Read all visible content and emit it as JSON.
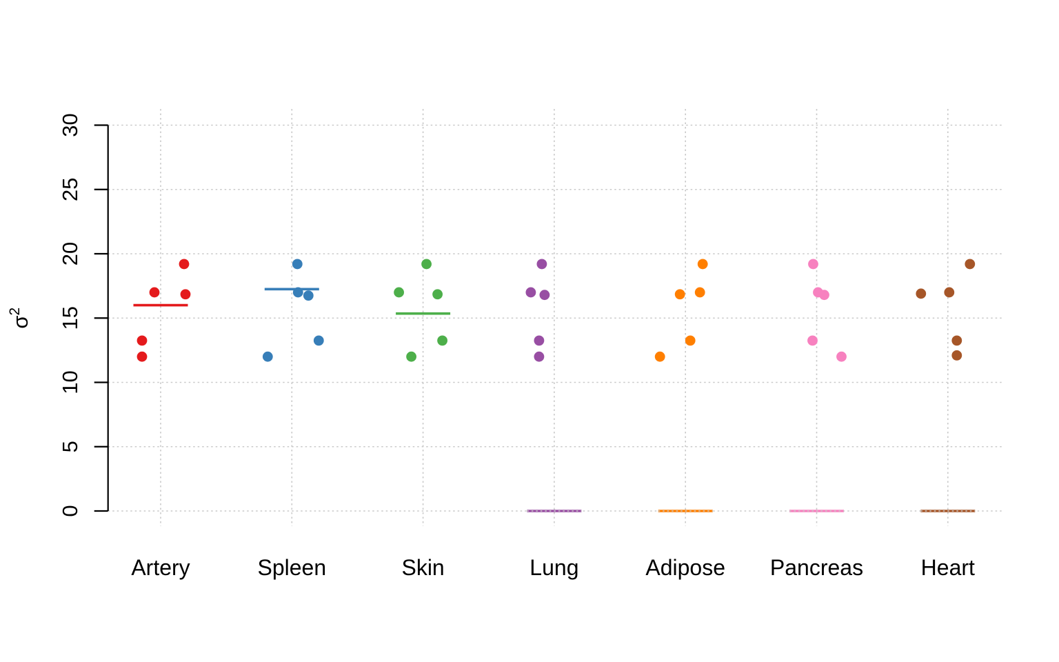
{
  "chart_data": {
    "type": "scatter",
    "subtype": "stripchart-jittered-dotplot",
    "title": "",
    "xlabel": "",
    "ylabel_base": "σ",
    "ylabel_superscript": "2",
    "ylim": [
      0,
      30
    ],
    "ytick_values": [
      0,
      5,
      10,
      15,
      20,
      25,
      30
    ],
    "ytick_labels": [
      "0",
      "5",
      "10",
      "15",
      "20",
      "25",
      "30"
    ],
    "ytick_label_rotation_deg": -90,
    "grid": true,
    "grid_style": "dotted",
    "gridline_color": "#c9c9c9",
    "axis_color": "#000000",
    "text_color": "#000000",
    "background_color": "#ffffff",
    "legend_position": "none",
    "categories": [
      "Artery",
      "Spleen",
      "Skin",
      "Lung",
      "Adipose",
      "Pancreas",
      "Heart"
    ],
    "series": [
      {
        "name": "Artery",
        "color": "#E41A1C",
        "points": [
          {
            "v": 19.2,
            "dx": 34
          },
          {
            "v": 17.0,
            "dx": -9
          },
          {
            "v": 16.85,
            "dx": 36
          },
          {
            "v": 13.25,
            "dx": -27
          },
          {
            "v": 12.0,
            "dx": -27
          }
        ],
        "center_line_value": 16.0
      },
      {
        "name": "Spleen",
        "color": "#377EB8",
        "points": [
          {
            "v": 19.2,
            "dx": 8
          },
          {
            "v": 17.0,
            "dx": 9
          },
          {
            "v": 16.75,
            "dx": 24
          },
          {
            "v": 13.25,
            "dx": 39
          },
          {
            "v": 12.0,
            "dx": -35
          }
        ],
        "center_line_value": 17.25
      },
      {
        "name": "Skin",
        "color": "#4DAF4A",
        "points": [
          {
            "v": 19.2,
            "dx": 5
          },
          {
            "v": 17.0,
            "dx": -35
          },
          {
            "v": 16.85,
            "dx": 21
          },
          {
            "v": 13.25,
            "dx": 28
          },
          {
            "v": 12.0,
            "dx": -17
          }
        ],
        "center_line_value": 15.35
      },
      {
        "name": "Lung",
        "color": "#984EA3",
        "points": [
          {
            "v": 19.2,
            "dx": -18
          },
          {
            "v": 17.0,
            "dx": -34
          },
          {
            "v": 16.8,
            "dx": -14
          },
          {
            "v": 13.25,
            "dx": -22
          },
          {
            "v": 12.0,
            "dx": -22
          }
        ],
        "center_line_value": 0
      },
      {
        "name": "Adipose",
        "color": "#FF7F00",
        "points": [
          {
            "v": 19.2,
            "dx": 25
          },
          {
            "v": 17.0,
            "dx": 21
          },
          {
            "v": 16.85,
            "dx": -8
          },
          {
            "v": 13.25,
            "dx": 7
          },
          {
            "v": 12.0,
            "dx": -37
          }
        ],
        "center_line_value": 0
      },
      {
        "name": "Pancreas",
        "color": "#F781BF",
        "points": [
          {
            "v": 19.2,
            "dx": -5
          },
          {
            "v": 17.0,
            "dx": 2
          },
          {
            "v": 16.8,
            "dx": 11
          },
          {
            "v": 13.25,
            "dx": -6
          },
          {
            "v": 12.0,
            "dx": 36
          }
        ],
        "center_line_value": 0
      },
      {
        "name": "Heart",
        "color": "#A65628",
        "points": [
          {
            "v": 19.2,
            "dx": 32
          },
          {
            "v": 17.0,
            "dx": 2
          },
          {
            "v": 16.9,
            "dx": -39
          },
          {
            "v": 13.25,
            "dx": 13
          },
          {
            "v": 12.1,
            "dx": 13
          }
        ],
        "center_line_value": 0
      }
    ]
  }
}
